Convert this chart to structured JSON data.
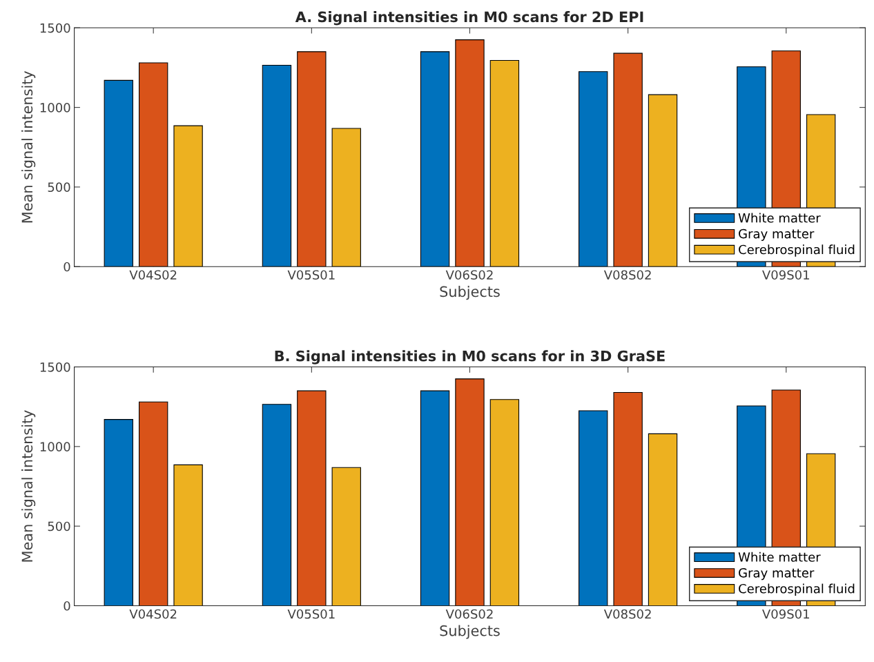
{
  "chart_data": [
    {
      "type": "bar",
      "title": "A. Signal intensities in M0 scans for 2D EPI",
      "xlabel": "Subjects",
      "ylabel": "Mean signal intensity",
      "categories": [
        "V04S02",
        "V05S01",
        "V06S02",
        "V08S02",
        "V09S01"
      ],
      "series": [
        {
          "name": "White matter",
          "color": "#0072bd",
          "values": [
            1170,
            1265,
            1350,
            1225,
            1255
          ]
        },
        {
          "name": "Gray matter",
          "color": "#d95319",
          "values": [
            1280,
            1350,
            1425,
            1340,
            1355
          ]
        },
        {
          "name": "Cerebrospinal fluid",
          "color": "#edb120",
          "values": [
            885,
            868,
            1295,
            1080,
            955
          ]
        }
      ],
      "ylim": [
        0,
        1500
      ],
      "yticks": [
        0,
        500,
        1000,
        1500
      ],
      "grid": false,
      "legend": "bottom right"
    },
    {
      "type": "bar",
      "title": "B. Signal intensities in M0 scans for in 3D GraSE",
      "xlabel": "Subjects",
      "ylabel": "Mean signal intensity",
      "categories": [
        "V04S02",
        "V05S01",
        "V06S02",
        "V08S02",
        "V09S01"
      ],
      "series": [
        {
          "name": "White matter",
          "color": "#0072bd",
          "values": [
            1170,
            1265,
            1350,
            1225,
            1255
          ]
        },
        {
          "name": "Gray matter",
          "color": "#d95319",
          "values": [
            1280,
            1350,
            1425,
            1340,
            1355
          ]
        },
        {
          "name": "Cerebrospinal fluid",
          "color": "#edb120",
          "values": [
            885,
            868,
            1295,
            1080,
            955
          ]
        }
      ],
      "ylim": [
        0,
        1500
      ],
      "yticks": [
        0,
        500,
        1000,
        1500
      ],
      "grid": false,
      "legend": "bottom right"
    }
  ]
}
